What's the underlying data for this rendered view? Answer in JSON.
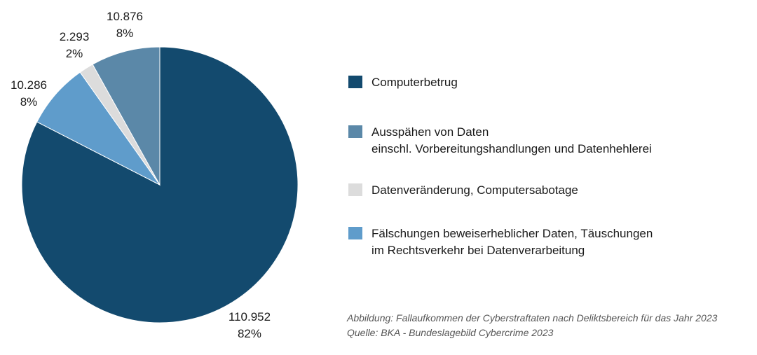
{
  "chart_data": {
    "type": "pie",
    "start_angle_deg": 0,
    "direction": "clockwise",
    "slices": [
      {
        "label": "Computerbetrug",
        "value": 110952,
        "value_label": "110.952",
        "percent_label": "82%",
        "color": "#134a6e"
      },
      {
        "label": "Fälschungen beweiserheblicher Daten, Täuschungen\nim Rechtsverkehr bei Datenverarbeitung",
        "value": 10286,
        "value_label": "10.286",
        "percent_label": "8%",
        "color": "#5f9ccb"
      },
      {
        "label": "Datenveränderung, Computersabotage",
        "value": 2293,
        "value_label": "2.293",
        "percent_label": "2%",
        "color": "#dcdcdc"
      },
      {
        "label": "Ausspähen von Daten\neinschl. Vorbereitungshandlungen und Datenhehlerei",
        "value": 10876,
        "value_label": "10.876",
        "percent_label": "8%",
        "color": "#5b88a8"
      }
    ],
    "legend": {
      "placement": "right",
      "order": [
        0,
        3,
        2,
        1
      ]
    }
  },
  "caption": {
    "line1": "Abbildung: Fallaufkommen der Cyberstraftaten nach Deliktsbereich für das Jahr 2023",
    "line2": "Quelle: BKA - Bundeslagebild Cybercrime 2023"
  }
}
